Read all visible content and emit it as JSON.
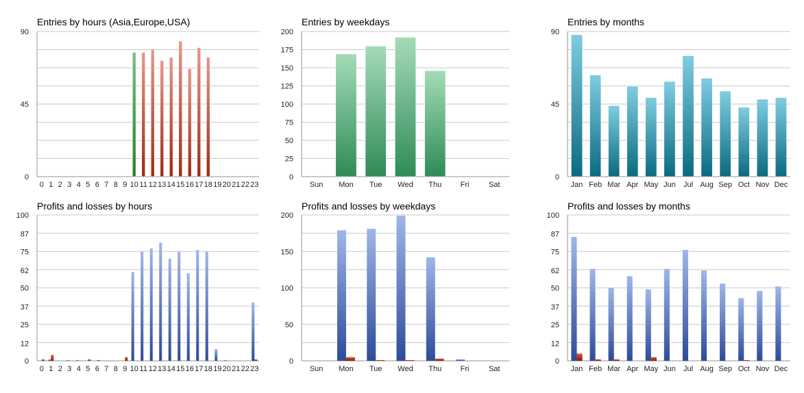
{
  "chart_data": [
    {
      "type": "bar",
      "title": "Entries by hours (Asia,Europe,USA)",
      "categories": [
        "0",
        "1",
        "2",
        "3",
        "4",
        "5",
        "6",
        "7",
        "8",
        "9",
        "10",
        "11",
        "12",
        "13",
        "14",
        "15",
        "16",
        "17",
        "18",
        "19",
        "20",
        "21",
        "22",
        "23"
      ],
      "series": [
        {
          "name": "Entries",
          "values": [
            0,
            0,
            0,
            0,
            0,
            0,
            0,
            0,
            0,
            0,
            77,
            77,
            79,
            72,
            74,
            84,
            67,
            80,
            74,
            0,
            0,
            0,
            0,
            0
          ]
        }
      ],
      "ylim": [
        0,
        90
      ],
      "yticks": [
        0,
        45,
        90
      ],
      "colors": {
        "bar_default": [
          "#e8998a",
          "#9e2a12"
        ],
        "bar_10": [
          "#7bc47f",
          "#2e7d32"
        ]
      }
    },
    {
      "type": "bar",
      "title": "Entries by weekdays",
      "categories": [
        "Sun",
        "Mon",
        "Tue",
        "Wed",
        "Thu",
        "Fri",
        "Sat"
      ],
      "series": [
        {
          "name": "Entries",
          "values": [
            0,
            169,
            180,
            192,
            146,
            0,
            0
          ]
        }
      ],
      "ylim": [
        0,
        200
      ],
      "yticks": [
        0,
        25,
        50,
        75,
        100,
        125,
        150,
        175,
        200
      ],
      "colors": {
        "bar": [
          "#a5dbb8",
          "#2e8b57"
        ]
      }
    },
    {
      "type": "bar",
      "title": "Entries by months",
      "categories": [
        "Jan",
        "Feb",
        "Mar",
        "Apr",
        "May",
        "Jun",
        "Jul",
        "Aug",
        "Sep",
        "Oct",
        "Nov",
        "Dec"
      ],
      "series": [
        {
          "name": "Entries",
          "values": [
            88,
            63,
            44,
            56,
            49,
            59,
            75,
            61,
            53,
            43,
            48,
            49
          ]
        }
      ],
      "ylim": [
        0,
        90
      ],
      "yticks": [
        0,
        45,
        90
      ],
      "colors": {
        "bar": [
          "#7fcde0",
          "#0a6a80"
        ]
      }
    },
    {
      "type": "bar",
      "title": "Profits and losses by hours",
      "categories": [
        "0",
        "1",
        "2",
        "3",
        "4",
        "5",
        "6",
        "7",
        "8",
        "9",
        "10",
        "11",
        "12",
        "13",
        "14",
        "15",
        "16",
        "17",
        "18",
        "19",
        "20",
        "21",
        "22",
        "23"
      ],
      "series": [
        {
          "name": "Profits",
          "values": [
            0,
            1,
            0,
            0.5,
            0.5,
            0,
            0,
            0,
            0,
            0,
            61,
            75,
            77,
            81,
            70,
            75,
            60,
            76,
            75,
            8,
            0.5,
            0,
            0,
            40
          ]
        },
        {
          "name": "Losses",
          "values": [
            1,
            4,
            0,
            0,
            0,
            1,
            0.5,
            0,
            0,
            2.5,
            0,
            0,
            0,
            0,
            0,
            0,
            0,
            0,
            0,
            0,
            0,
            0,
            0,
            1
          ]
        }
      ],
      "ylim": [
        0,
        100
      ],
      "yticks": [
        0,
        12,
        25,
        37,
        50,
        62,
        75,
        87,
        100
      ],
      "colors": {
        "profit": [
          "#9fb6e8",
          "#2d4b9a"
        ],
        "loss": [
          "#e05a3a",
          "#8a1a0a"
        ]
      }
    },
    {
      "type": "bar",
      "title": "Profits and losses by weekdays",
      "categories": [
        "Sun",
        "Mon",
        "Tue",
        "Wed",
        "Thu",
        "Fri",
        "Sat"
      ],
      "series": [
        {
          "name": "Profits",
          "values": [
            0,
            179,
            181,
            199,
            142,
            2,
            0
          ]
        },
        {
          "name": "Losses",
          "values": [
            0,
            5,
            1,
            1,
            3,
            0,
            0
          ]
        }
      ],
      "ylim": [
        0,
        200
      ],
      "yticks": [
        0,
        50,
        100,
        150,
        200
      ],
      "colors": {
        "profit": [
          "#9fb6e8",
          "#2d4b9a"
        ],
        "loss": [
          "#e05a3a",
          "#8a1a0a"
        ]
      }
    },
    {
      "type": "bar",
      "title": "Profits and losses by months",
      "categories": [
        "Jan",
        "Feb",
        "Mar",
        "Apr",
        "May",
        "Jun",
        "Jul",
        "Aug",
        "Sep",
        "Oct",
        "Nov",
        "Dec"
      ],
      "series": [
        {
          "name": "Profits",
          "values": [
            85,
            63,
            50,
            58,
            49,
            63,
            76,
            62,
            53,
            43,
            48,
            51
          ]
        },
        {
          "name": "Losses",
          "values": [
            5,
            1,
            1,
            0,
            2.5,
            0,
            0,
            0,
            0,
            0.5,
            0,
            0
          ]
        }
      ],
      "ylim": [
        0,
        100
      ],
      "yticks": [
        0,
        12,
        25,
        37,
        50,
        62,
        75,
        87,
        100
      ],
      "colors": {
        "profit": [
          "#9fb6e8",
          "#2d4b9a"
        ],
        "loss": [
          "#e05a3a",
          "#8a1a0a"
        ]
      }
    }
  ]
}
